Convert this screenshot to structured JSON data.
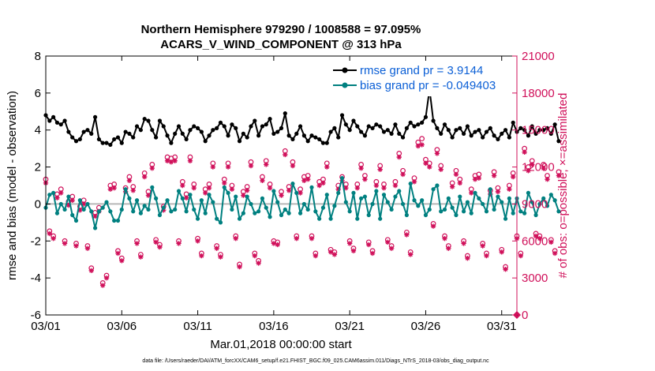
{
  "chart_data": {
    "type": "line",
    "title_line1": "Northern Hemisphere 979290 / 1008588 = 97.095%",
    "title_line2": "ACARS_V_WIND_COMPONENT @ 313 hPa",
    "xlabel": "Mar.01,2018 00:00:00 start",
    "ylabel_left": "rmse and bias (model - observation)",
    "ylabel_right": "# of obs: o=possible; ×=assimilated",
    "footnote": "data file: /Users/raeder/DAI/ATM_forcXX/CAM6_setup/f.e21.FHIST_BGC.f09_025.CAM6assim.011/Diags_NTrS_2018-03/obs_diag_output.nc",
    "xlim": [
      1,
      32
    ],
    "ylim_left": [
      -6,
      8
    ],
    "ylim_right": [
      0,
      21000
    ],
    "x_ticks": [
      1,
      6,
      11,
      16,
      21,
      26,
      31
    ],
    "x_tick_labels": [
      "03/01",
      "03/06",
      "03/11",
      "03/16",
      "03/21",
      "03/26",
      "03/31"
    ],
    "y_left_ticks": [
      -6,
      -4,
      -2,
      0,
      2,
      4,
      6,
      8
    ],
    "y_left_tick_labels": [
      "-6",
      "-4",
      "-2",
      "0",
      "2",
      "4",
      "6",
      "8"
    ],
    "y_right_ticks": [
      0,
      3000,
      6000,
      9000,
      12000,
      15000,
      18000,
      21000
    ],
    "y_right_tick_labels": [
      "0",
      "3000",
      "6000",
      "9000",
      "12000",
      "15000",
      "18000",
      "21000"
    ],
    "colors": {
      "rmse": "#000000",
      "bias": "#008080",
      "obs": "#d0105a",
      "legend_text": "#0b5fd6",
      "zero_line": "#b8b8b8"
    },
    "series": [
      {
        "name": "rmse grand pr = 3.9144",
        "axis": "left",
        "x_start": 1.0,
        "x_step": 0.25,
        "values": [
          4.8,
          4.5,
          4.7,
          4.4,
          4.3,
          4.5,
          3.9,
          3.6,
          3.4,
          3.5,
          3.9,
          4.0,
          3.8,
          4.7,
          3.5,
          3.3,
          3.3,
          3.2,
          3.5,
          3.6,
          3.3,
          3.9,
          3.8,
          3.6,
          4.2,
          4.0,
          4.6,
          4.5,
          4.0,
          3.6,
          4.5,
          4.2,
          3.7,
          3.3,
          3.8,
          4.2,
          3.8,
          3.5,
          4.0,
          4.2,
          4.1,
          3.9,
          3.4,
          3.7,
          4.0,
          4.1,
          4.4,
          4.2,
          3.7,
          4.3,
          4.1,
          3.4,
          3.8,
          3.6,
          4.2,
          4.5,
          3.7,
          4.2,
          4.3,
          4.6,
          3.8,
          3.9,
          4.1,
          4.9,
          3.7,
          3.5,
          3.8,
          4.2,
          3.7,
          3.4,
          3.7,
          3.6,
          3.5,
          3.3,
          3.3,
          3.9,
          4.1,
          3.6,
          4.8,
          4.3,
          4.0,
          4.5,
          4.2,
          3.9,
          3.7,
          4.2,
          4.1,
          4.3,
          4.2,
          3.9,
          4.0,
          3.8,
          4.3,
          3.8,
          3.6,
          4.1,
          4.4,
          4.2,
          4.3,
          4.4,
          4.7,
          6.2,
          4.5,
          4.1,
          3.8,
          4.3,
          4.0,
          3.6,
          4.0,
          4.1,
          3.8,
          4.2,
          3.7,
          3.9,
          4.0,
          3.6,
          3.9,
          4.1,
          3.7,
          3.5,
          3.8,
          4.0,
          3.6,
          4.4,
          3.9,
          4.1,
          4.0,
          3.7,
          4.2,
          3.8,
          4.0,
          4.0,
          4.1,
          3.8,
          4.3,
          3.4
        ]
      },
      {
        "name": "bias grand pr = -0.049403",
        "axis": "left",
        "x_start": 1.0,
        "x_step": 0.25,
        "values": [
          -0.2,
          0.5,
          0.6,
          -0.5,
          0.0,
          -0.3,
          0.4,
          -0.6,
          -0.9,
          0.2,
          -0.3,
          0.0,
          -0.4,
          -1.3,
          -0.4,
          -0.2,
          0.1,
          -0.4,
          -0.9,
          -0.9,
          -0.3,
          0.8,
          0.3,
          -0.4,
          0.2,
          -0.5,
          -0.1,
          -0.3,
          0.9,
          0.3,
          -0.6,
          -0.2,
          0.2,
          -0.4,
          -0.3,
          0.7,
          0.3,
          -0.4,
          0.5,
          -0.3,
          -0.8,
          0.2,
          -0.5,
          0.5,
          0.1,
          -0.8,
          -1.0,
          0.9,
          0.6,
          -0.3,
          0.4,
          -0.8,
          -0.5,
          0.4,
          0.0,
          -0.5,
          -0.4,
          0.3,
          -0.2,
          -0.7,
          0.7,
          0.1,
          -0.6,
          -0.3,
          -0.5,
          1.1,
          0.6,
          -0.5,
          0.0,
          -0.3,
          0.9,
          -0.4,
          -0.8,
          -0.2,
          0.5,
          -0.8,
          -0.1,
          0.6,
          1.4,
          0.1,
          -0.4,
          0.6,
          -0.8,
          0.3,
          0.4,
          -0.6,
          0.0,
          0.7,
          -0.8,
          0.5,
          0.1,
          -0.3,
          0.4,
          0.7,
          0.0,
          -0.6,
          1.1,
          0.2,
          -0.1,
          0.2,
          -0.6,
          -0.3,
          0.8,
          1.0,
          -0.4,
          -0.3,
          0.3,
          -0.2,
          -0.6,
          0.4,
          -0.4,
          0.1,
          -0.5,
          0.6,
          0.3,
          0.0,
          -0.4,
          0.8,
          -0.3,
          0.4,
          0.1,
          -0.8,
          0.3,
          -0.5,
          0.3,
          -0.4,
          -0.5,
          0.6,
          0.1,
          -0.6,
          0.0,
          0.3,
          -0.1,
          0.5,
          0.2,
          -0.4
        ]
      },
      {
        "name": "obs possible",
        "axis": "right",
        "marker": "circle",
        "x_start": 1.0,
        "x_step": 0.25,
        "values": [
          11000,
          6800,
          6400,
          9800,
          10200,
          6000,
          9200,
          9600,
          5800,
          8800,
          9300,
          5600,
          3800,
          8300,
          8700,
          2600,
          3200,
          10500,
          10600,
          5200,
          4600,
          10300,
          11200,
          10400,
          6000,
          4900,
          11500,
          10000,
          12200,
          6100,
          5700,
          8800,
          12800,
          12700,
          12800,
          6000,
          10800,
          9800,
          12800,
          10600,
          6200,
          5000,
          10200,
          10600,
          12300,
          5600,
          4900,
          11000,
          12300,
          10500,
          6400,
          4100,
          10000,
          10400,
          12400,
          5000,
          4400,
          11200,
          12500,
          10600,
          6000,
          5900,
          10000,
          13300,
          10400,
          12400,
          6400,
          10200,
          11200,
          11300,
          6400,
          5000,
          10800,
          11000,
          12300,
          5300,
          5100,
          10500,
          11200,
          10600,
          6000,
          5400,
          10600,
          12200,
          11300,
          5900,
          5200,
          10800,
          12100,
          10600,
          6100,
          5600,
          10800,
          13100,
          11700,
          6700,
          5100,
          11100,
          14000,
          14300,
          12600,
          12300,
          7400,
          13400,
          12100,
          6400,
          5600,
          10700,
          11700,
          11000,
          6000,
          4800,
          10200,
          11300,
          11400,
          5800,
          5000,
          10100,
          11600,
          10300,
          5300,
          3900,
          10500,
          11500,
          6400,
          5000,
          13500,
          12000,
          12500,
          6600,
          6400,
          12200,
          11300,
          6100,
          5200,
          11600
        ]
      },
      {
        "name": "obs assimilated",
        "axis": "right",
        "marker": "asterisk",
        "x_start": 1.0,
        "x_step": 0.25,
        "values": [
          10700,
          6600,
          6200,
          9500,
          9900,
          5800,
          8900,
          9300,
          5600,
          8500,
          9000,
          5400,
          3600,
          8000,
          8400,
          2400,
          3000,
          10200,
          10300,
          5000,
          4400,
          10000,
          10900,
          10100,
          5800,
          4700,
          11200,
          9700,
          11900,
          5900,
          5500,
          8500,
          12500,
          12400,
          12500,
          5800,
          10500,
          9500,
          12500,
          10300,
          6000,
          4800,
          9900,
          10300,
          12000,
          5400,
          4700,
          10700,
          12000,
          10200,
          6200,
          3900,
          9700,
          10100,
          12100,
          4800,
          4200,
          10900,
          12200,
          10300,
          5800,
          5700,
          9700,
          13000,
          10100,
          12100,
          6200,
          9900,
          10900,
          11000,
          6200,
          4800,
          10500,
          10700,
          12000,
          5100,
          4900,
          10200,
          10900,
          10300,
          5800,
          5200,
          10300,
          11900,
          11000,
          5700,
          5000,
          10500,
          11800,
          10300,
          5900,
          5400,
          10500,
          12800,
          11400,
          6500,
          4900,
          10800,
          13700,
          13800,
          12300,
          12000,
          7200,
          13100,
          11800,
          6200,
          5400,
          10400,
          11400,
          10700,
          5800,
          4600,
          9900,
          11000,
          11100,
          5600,
          4800,
          9800,
          11300,
          10000,
          5100,
          3700,
          10200,
          11200,
          6200,
          4800,
          13200,
          11700,
          12200,
          6400,
          6200,
          11900,
          11000,
          5900,
          5000,
          11300
        ]
      },
      {
        "name": "obs endpoint",
        "axis": "right",
        "marker": "diamond",
        "x_start": 32.0,
        "x_step": 0.25,
        "values": [
          0
        ]
      }
    ],
    "legend": [
      "rmse grand pr = 3.9144",
      "bias grand pr = -0.049403"
    ]
  }
}
